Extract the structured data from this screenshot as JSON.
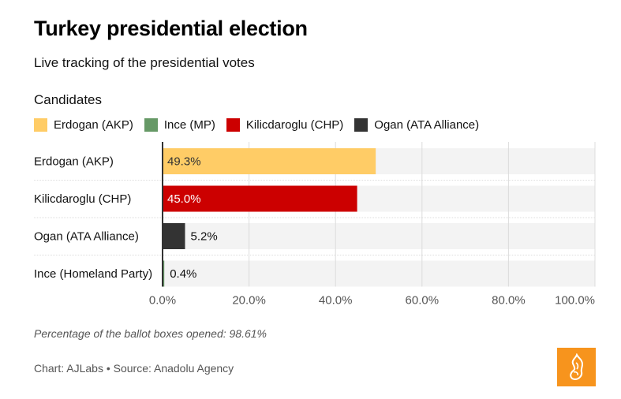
{
  "header": {
    "title": "Turkey presidential election",
    "subtitle": "Live tracking of the presidential votes"
  },
  "legend": {
    "title": "Candidates",
    "items": [
      {
        "label": "Erdogan (AKP)",
        "color": "#ffcc66"
      },
      {
        "label": "Ince (MP)",
        "color": "#669966"
      },
      {
        "label": "Kilicdaroglu (CHP)",
        "color": "#cc0000"
      },
      {
        "label": "Ogan (ATA Alliance)",
        "color": "#333333"
      }
    ]
  },
  "chart_data": {
    "type": "bar",
    "orientation": "horizontal",
    "title": "Turkey presidential election",
    "subtitle": "Live tracking of the presidential votes",
    "legend_title": "Candidates",
    "legend_position": "top-left",
    "categories": [
      "Erdogan (AKP)",
      "Kilicdaroglu (CHP)",
      "Ogan (ATA Alliance)",
      "Ince (Homeland Party)"
    ],
    "values": [
      49.3,
      45.0,
      5.2,
      0.4
    ],
    "value_labels": [
      "49.3%",
      "45.0%",
      "5.2%",
      "0.4%"
    ],
    "colors": [
      "#ffcc66",
      "#cc0000",
      "#333333",
      "#669966"
    ],
    "label_colors": [
      "#333333",
      "#ffffff",
      "#111111",
      "#111111"
    ],
    "label_inside": [
      true,
      true,
      false,
      false
    ],
    "xlabel": "",
    "ylabel": "",
    "xlim": [
      0,
      100
    ],
    "xticks": [
      0,
      20,
      40,
      60,
      80,
      100
    ],
    "xtick_labels": [
      "0.0%",
      "20.0%",
      "40.0%",
      "60.0%",
      "80.0%",
      "100.0%"
    ],
    "grid": true,
    "track_color": "#f3f3f3"
  },
  "footer": {
    "note": "Percentage of the ballot boxes opened: 98.61%",
    "source": "Chart: AJLabs • Source: Anadolu Agency",
    "logo_icon": "al-jazeera-logo-icon",
    "logo_color": "#f7941d"
  }
}
